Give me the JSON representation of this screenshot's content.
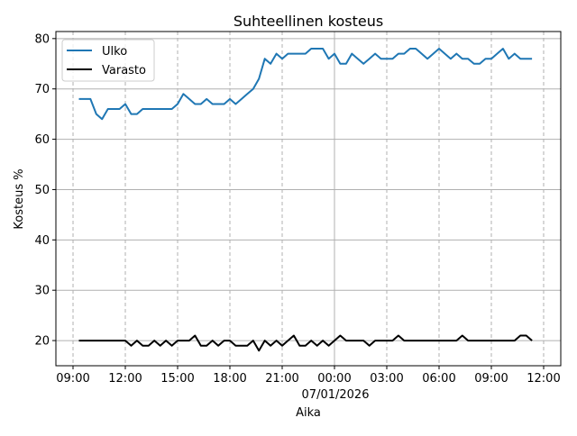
{
  "chart_data": {
    "type": "line",
    "title": "Suhteellinen kosteus",
    "xlabel": "Aika",
    "ylabel": "Kosteus %",
    "date_label": "07/01/2026",
    "x_start_minutes_after_0900": 20,
    "x_step_minutes": 20,
    "xlim_minutes_after_0900": [
      -59,
      1679
    ],
    "ylim": [
      15,
      81.4
    ],
    "yticks": [
      20,
      30,
      40,
      50,
      60,
      70,
      80
    ],
    "xticks": [
      {
        "minutes": 0,
        "label": "09:00"
      },
      {
        "minutes": 180,
        "label": "12:00"
      },
      {
        "minutes": 360,
        "label": "15:00"
      },
      {
        "minutes": 540,
        "label": "18:00"
      },
      {
        "minutes": 720,
        "label": "21:00"
      },
      {
        "minutes": 900,
        "label": "00:00"
      },
      {
        "minutes": 1080,
        "label": "03:00"
      },
      {
        "minutes": 1260,
        "label": "06:00"
      },
      {
        "minutes": 1440,
        "label": "09:00"
      },
      {
        "minutes": 1620,
        "label": "12:00"
      }
    ],
    "grid": true,
    "legend_position": "top-left",
    "series": [
      {
        "name": "Ulko",
        "color": "#1f77b4",
        "values": [
          68,
          68,
          68,
          65,
          64,
          66,
          66,
          66,
          67,
          65,
          65,
          66,
          66,
          66,
          66,
          66,
          66,
          67,
          69,
          68,
          67,
          67,
          68,
          67,
          67,
          67,
          68,
          67,
          68,
          69,
          70,
          72,
          76,
          75,
          77,
          76,
          77,
          77,
          77,
          77,
          78,
          78,
          78,
          76,
          77,
          75,
          75,
          77,
          76,
          75,
          76,
          77,
          76,
          76,
          76,
          77,
          77,
          78,
          78,
          77,
          76,
          77,
          78,
          77,
          76,
          77,
          76,
          76,
          75,
          75,
          76,
          76,
          77,
          78,
          76,
          77,
          76,
          76,
          76
        ]
      },
      {
        "name": "Varasto",
        "color": "#000000",
        "values": [
          20,
          20,
          20,
          20,
          20,
          20,
          20,
          20,
          20,
          19,
          20,
          19,
          19,
          20,
          19,
          20,
          19,
          20,
          20,
          20,
          21,
          19,
          19,
          20,
          19,
          20,
          20,
          19,
          19,
          19,
          20,
          18,
          20,
          19,
          20,
          19,
          20,
          21,
          19,
          19,
          20,
          19,
          20,
          19,
          20,
          21,
          20,
          20,
          20,
          20,
          19,
          20,
          20,
          20,
          20,
          21,
          20,
          20,
          20,
          20,
          20,
          20,
          20,
          20,
          20,
          20,
          21,
          20,
          20,
          20,
          20,
          20,
          20,
          20,
          20,
          20,
          21,
          21,
          20
        ]
      }
    ]
  }
}
